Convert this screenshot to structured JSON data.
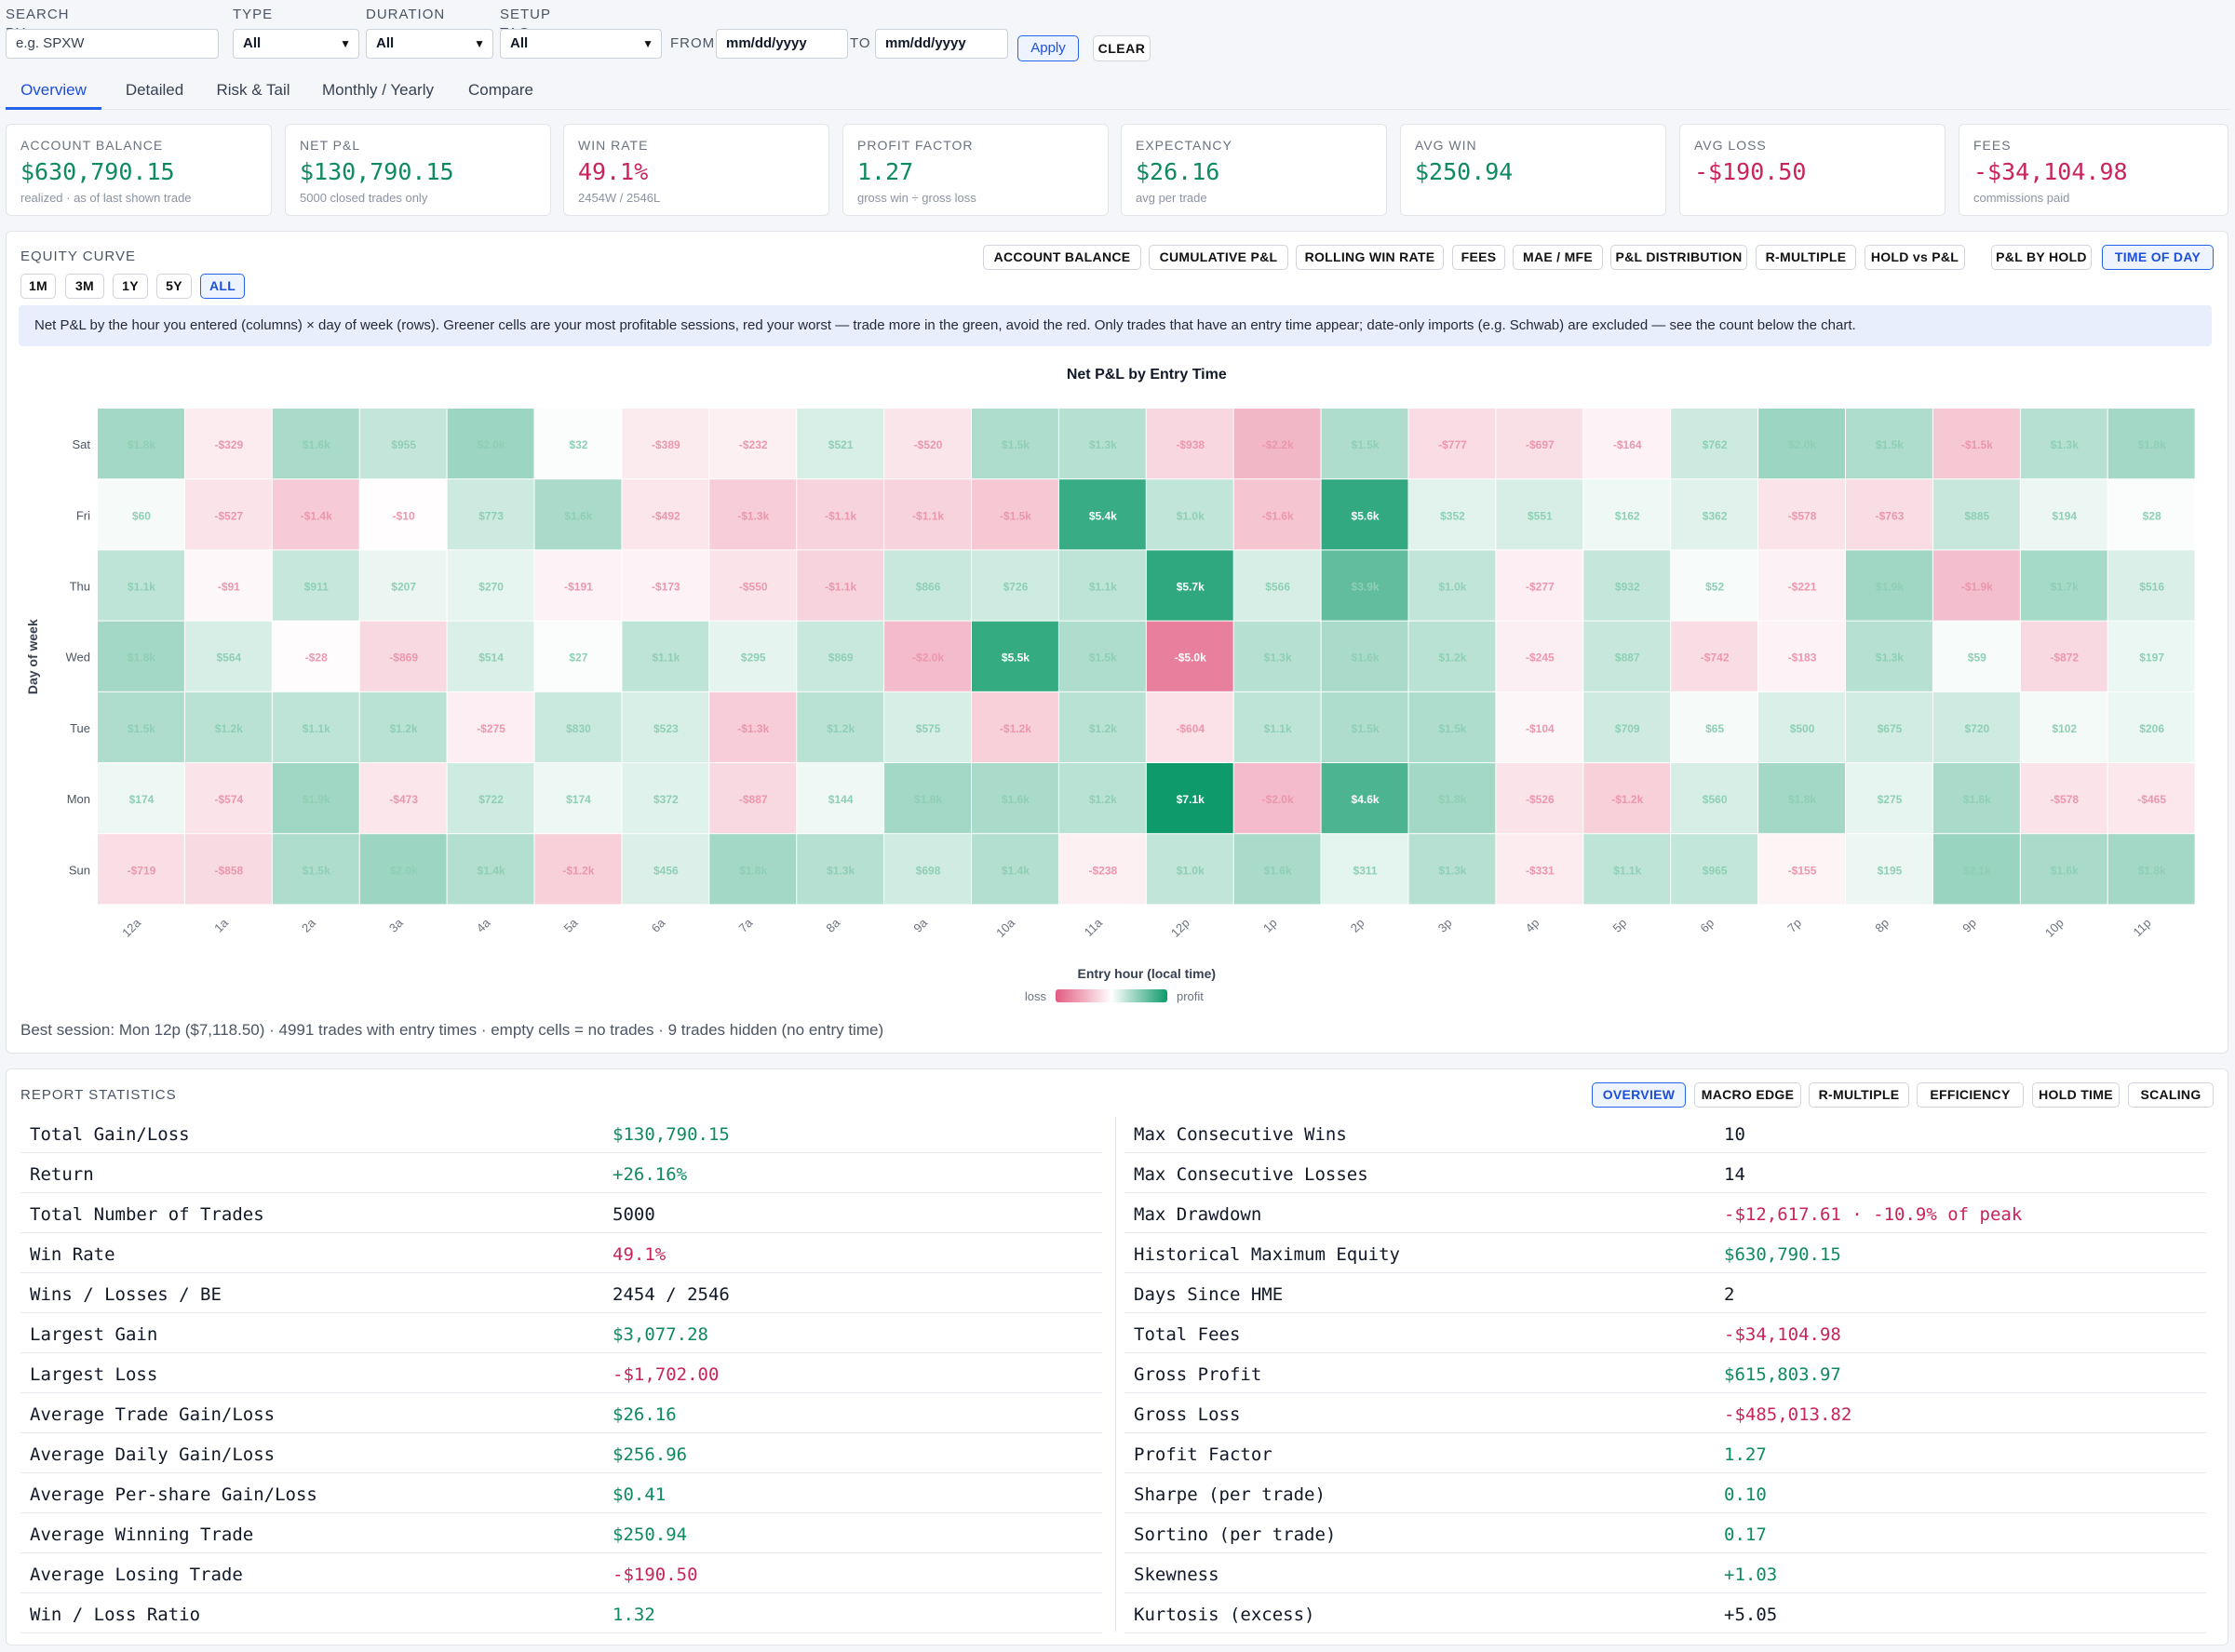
{
  "filters": {
    "search_label": "SEARCH BY SYMBOL",
    "search_placeholder": "e.g. SPXW",
    "type_label": "TYPE",
    "type_value": "All",
    "duration_label": "DURATION",
    "duration_value": "All",
    "setup_label": "SETUP TAG",
    "setup_value": "All",
    "from_label": "FROM",
    "from_placeholder": "mm/dd/yyyy",
    "to_label": "TO",
    "to_placeholder": "mm/dd/yyyy",
    "apply_label": "Apply",
    "clear_label": "CLEAR"
  },
  "tabs": [
    "Overview",
    "Detailed",
    "Risk & Tail",
    "Monthly / Yearly",
    "Compare"
  ],
  "cards": [
    {
      "label": "ACCOUNT BALANCE",
      "value": "$630,790.15",
      "sub": "realized · as of last shown trade",
      "tone": "green"
    },
    {
      "label": "NET P&L",
      "value": "$130,790.15",
      "sub": "5000 closed trades only",
      "tone": "green"
    },
    {
      "label": "WIN RATE",
      "value": "49.1%",
      "sub": "2454W / 2546L",
      "tone": "red"
    },
    {
      "label": "PROFIT FACTOR",
      "value": "1.27",
      "sub": "gross win ÷ gross loss",
      "tone": "green"
    },
    {
      "label": "EXPECTANCY",
      "value": "$26.16",
      "sub": "avg per trade",
      "tone": "green"
    },
    {
      "label": "AVG WIN",
      "value": "$250.94",
      "sub": "",
      "tone": "green"
    },
    {
      "label": "AVG LOSS",
      "value": "-$190.50",
      "sub": "",
      "tone": "red"
    },
    {
      "label": "FEES",
      "value": "-$34,104.98",
      "sub": "commissions paid",
      "tone": "red"
    }
  ],
  "equity": {
    "title": "EQUITY CURVE",
    "ranges": [
      "1M",
      "3M",
      "1Y",
      "5Y",
      "ALL"
    ],
    "active_range": "ALL",
    "chart_buttons": [
      "ACCOUNT BALANCE",
      "CUMULATIVE P&L",
      "ROLLING WIN RATE",
      "FEES",
      "MAE / MFE",
      "P&L DISTRIBUTION",
      "R-MULTIPLE",
      "HOLD vs P&L",
      "P&L BY HOLD",
      "TIME OF DAY"
    ],
    "active_chart": "TIME OF DAY",
    "info": "Net P&L by the hour you entered (columns) × day of week (rows). Greener cells are your most profitable sessions, red your worst — trade more in the green, avoid the red. Only trades that have an entry time appear; date-only imports (e.g. Schwab) are excluded — see the count below the chart.",
    "footer": "Best session: Mon 12p ($7,118.50) · 4991 trades with entry times · empty cells = no trades · 9 trades hidden (no entry time)",
    "legend_loss": "loss",
    "legend_profit": "profit",
    "colors": {
      "profit": "#0e9a6a",
      "loss": "#e25b80"
    }
  },
  "chart_data": {
    "type": "heatmap",
    "title": "Net P&L by Entry Time",
    "xlabel": "Entry hour (local time)",
    "ylabel": "Day of week",
    "x": [
      "12a",
      "1a",
      "2a",
      "3a",
      "4a",
      "5a",
      "6a",
      "7a",
      "8a",
      "9a",
      "10a",
      "11a",
      "12p",
      "1p",
      "2p",
      "3p",
      "4p",
      "5p",
      "6p",
      "7p",
      "8p",
      "9p",
      "10p",
      "11p"
    ],
    "y": [
      "Sat",
      "Fri",
      "Thu",
      "Wed",
      "Tue",
      "Mon",
      "Sun"
    ],
    "values": [
      [
        1800,
        -329,
        1600,
        955,
        2000,
        32,
        -389,
        -232,
        521,
        -520,
        1500,
        1300,
        -938,
        -2200,
        1500,
        -777,
        -697,
        -164,
        762,
        2000,
        1500,
        -1500,
        1300,
        1800
      ],
      [
        60,
        -527,
        -1400,
        -10,
        773,
        1600,
        -492,
        -1300,
        -1100,
        -1100,
        -1500,
        5400,
        1000,
        -1600,
        5600,
        352,
        551,
        162,
        362,
        -578,
        -763,
        885,
        194,
        28
      ],
      [
        1100,
        -91,
        911,
        207,
        270,
        -191,
        -173,
        -550,
        -1100,
        866,
        726,
        1100,
        5700,
        566,
        3900,
        1000,
        -277,
        932,
        52,
        -221,
        1900,
        -1900,
        1700,
        516
      ],
      [
        1800,
        564,
        -28,
        -869,
        514,
        27,
        1100,
        295,
        869,
        -2000,
        5500,
        1500,
        -5000,
        1300,
        1600,
        1200,
        -245,
        887,
        -742,
        -183,
        1300,
        59,
        -872,
        197
      ],
      [
        1500,
        1200,
        1100,
        1200,
        -275,
        830,
        523,
        -1300,
        1200,
        575,
        -1200,
        1200,
        -604,
        1100,
        1500,
        1500,
        -104,
        709,
        65,
        500,
        675,
        720,
        102,
        206
      ],
      [
        174,
        -574,
        1900,
        -473,
        722,
        174,
        372,
        -887,
        144,
        1800,
        1600,
        1200,
        7100,
        -2000,
        4600,
        1800,
        -526,
        -1200,
        560,
        1800,
        275,
        1600,
        -578,
        -465
      ],
      [
        -719,
        -858,
        1500,
        2000,
        1400,
        -1200,
        456,
        1800,
        1300,
        698,
        1400,
        -238,
        1000,
        1600,
        311,
        1300,
        -331,
        1100,
        965,
        -155,
        195,
        2100,
        1600,
        1800
      ]
    ],
    "labels": [
      [
        "$1.8k",
        "-$329",
        "$1.6k",
        "$955",
        "$2.0k",
        "$32",
        "-$389",
        "-$232",
        "$521",
        "-$520",
        "$1.5k",
        "$1.3k",
        "-$938",
        "-$2.2k",
        "$1.5k",
        "-$777",
        "-$697",
        "-$164",
        "$762",
        "$2.0k",
        "$1.5k",
        "-$1.5k",
        "$1.3k",
        "$1.8k"
      ],
      [
        "$60",
        "-$527",
        "-$1.4k",
        "-$10",
        "$773",
        "$1.6k",
        "-$492",
        "-$1.3k",
        "-$1.1k",
        "-$1.1k",
        "-$1.5k",
        "$5.4k",
        "$1.0k",
        "-$1.6k",
        "$5.6k",
        "$352",
        "$551",
        "$162",
        "$362",
        "-$578",
        "-$763",
        "$885",
        "$194",
        "$28"
      ],
      [
        "$1.1k",
        "-$91",
        "$911",
        "$207",
        "$270",
        "-$191",
        "-$173",
        "-$550",
        "-$1.1k",
        "$866",
        "$726",
        "$1.1k",
        "$5.7k",
        "$566",
        "$3.9k",
        "$1.0k",
        "-$277",
        "$932",
        "$52",
        "-$221",
        "$1.9k",
        "-$1.9k",
        "$1.7k",
        "$516"
      ],
      [
        "$1.8k",
        "$564",
        "-$28",
        "-$869",
        "$514",
        "$27",
        "$1.1k",
        "$295",
        "$869",
        "-$2.0k",
        "$5.5k",
        "$1.5k",
        "-$5.0k",
        "$1.3k",
        "$1.6k",
        "$1.2k",
        "-$245",
        "$887",
        "-$742",
        "-$183",
        "$1.3k",
        "$59",
        "-$872",
        "$197"
      ],
      [
        "$1.5k",
        "$1.2k",
        "$1.1k",
        "$1.2k",
        "-$275",
        "$830",
        "$523",
        "-$1.3k",
        "$1.2k",
        "$575",
        "-$1.2k",
        "$1.2k",
        "-$604",
        "$1.1k",
        "$1.5k",
        "$1.5k",
        "-$104",
        "$709",
        "$65",
        "$500",
        "$675",
        "$720",
        "$102",
        "$206"
      ],
      [
        "$174",
        "-$574",
        "$1.9k",
        "-$473",
        "$722",
        "$174",
        "$372",
        "-$887",
        "$144",
        "$1.8k",
        "$1.6k",
        "$1.2k",
        "$7.1k",
        "-$2.0k",
        "$4.6k",
        "$1.8k",
        "-$526",
        "-$1.2k",
        "$560",
        "$1.8k",
        "$275",
        "$1.6k",
        "-$578",
        "-$465"
      ],
      [
        "-$719",
        "-$858",
        "$1.5k",
        "$2.0k",
        "$1.4k",
        "-$1.2k",
        "$456",
        "$1.8k",
        "$1.3k",
        "$698",
        "$1.4k",
        "-$238",
        "$1.0k",
        "$1.6k",
        "$311",
        "$1.3k",
        "-$331",
        "$1.1k",
        "$965",
        "-$155",
        "$195",
        "$2.1k",
        "$1.6k",
        "$1.8k"
      ]
    ]
  },
  "report": {
    "title": "REPORT STATISTICS",
    "buttons": [
      "OVERVIEW",
      "MACRO EDGE",
      "R-MULTIPLE",
      "EFFICIENCY",
      "HOLD TIME",
      "SCALING"
    ],
    "active": "OVERVIEW",
    "left": [
      {
        "k": "Total Gain/Loss",
        "v": "$130,790.15",
        "tone": "green"
      },
      {
        "k": "Return",
        "v": "+26.16%",
        "tone": "green"
      },
      {
        "k": "Total Number of Trades",
        "v": "5000",
        "tone": "blk"
      },
      {
        "k": "Win Rate",
        "v": "49.1%",
        "tone": "red"
      },
      {
        "k": "Wins / Losses / BE",
        "v": "2454 / 2546",
        "tone": "blk"
      },
      {
        "k": "Largest Gain",
        "v": "$3,077.28",
        "tone": "green"
      },
      {
        "k": "Largest Loss",
        "v": "-$1,702.00",
        "tone": "red"
      },
      {
        "k": "Average Trade Gain/Loss",
        "v": "$26.16",
        "tone": "green"
      },
      {
        "k": "Average Daily Gain/Loss",
        "v": "$256.96",
        "tone": "green"
      },
      {
        "k": "Average Per-share Gain/Loss",
        "v": "$0.41",
        "tone": "green"
      },
      {
        "k": "Average Winning Trade",
        "v": "$250.94",
        "tone": "green"
      },
      {
        "k": "Average Losing Trade",
        "v": "-$190.50",
        "tone": "red"
      },
      {
        "k": "Win / Loss Ratio",
        "v": "1.32",
        "tone": "green"
      }
    ],
    "right": [
      {
        "k": "Max Consecutive Wins",
        "v": "10",
        "tone": "blk"
      },
      {
        "k": "Max Consecutive Losses",
        "v": "14",
        "tone": "blk"
      },
      {
        "k": "Max Drawdown",
        "v": "-$12,617.61 · -10.9% of peak",
        "tone": "red"
      },
      {
        "k": "Historical Maximum Equity",
        "v": "$630,790.15",
        "tone": "green"
      },
      {
        "k": "Days Since HME",
        "v": "2",
        "tone": "blk"
      },
      {
        "k": "Total Fees",
        "v": "-$34,104.98",
        "tone": "red"
      },
      {
        "k": "Gross Profit",
        "v": "$615,803.97",
        "tone": "green"
      },
      {
        "k": "Gross Loss",
        "v": "-$485,013.82",
        "tone": "red"
      },
      {
        "k": "Profit Factor",
        "v": "1.27",
        "tone": "green"
      },
      {
        "k": "Sharpe (per trade)",
        "v": "0.10",
        "tone": "green"
      },
      {
        "k": "Sortino (per trade)",
        "v": "0.17",
        "tone": "green"
      },
      {
        "k": "Skewness",
        "v": "+1.03",
        "tone": "green"
      },
      {
        "k": "Kurtosis (excess)",
        "v": "+5.05",
        "tone": "blk"
      }
    ]
  }
}
